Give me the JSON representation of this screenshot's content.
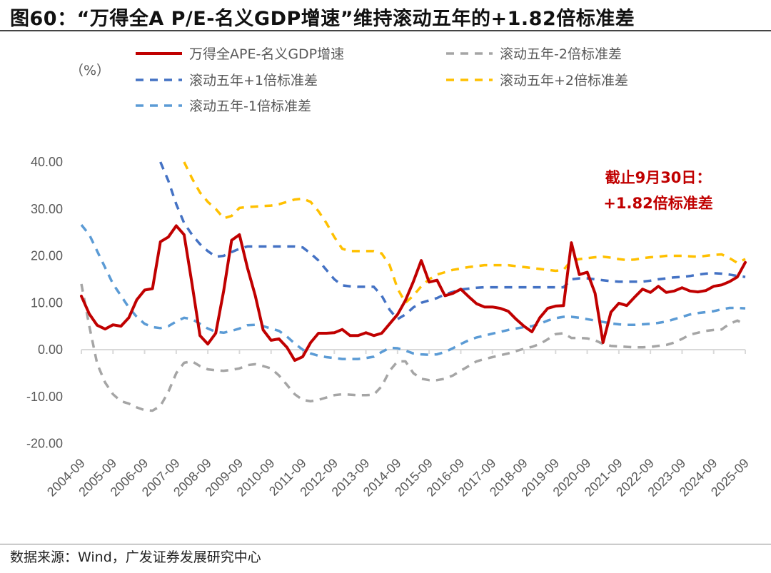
{
  "title": "图60：“万得全A P/E-名义GDP增速”维持滚动五年的+1.82倍标准差",
  "source": "数据来源：Wind，广发证券发展研究中心",
  "chart_data": {
    "type": "line",
    "title": "图60：“万得全A P/E-名义GDP增速”维持滚动五年的+1.82倍标准差",
    "ylabel": "（%）",
    "xlabel": "",
    "ylim": [
      -20,
      40
    ],
    "yticks": [
      "40.00",
      "30.00",
      "20.00",
      "10.00",
      "0.00",
      "-10.00",
      "-20.00"
    ],
    "xtick_labels": [
      "2004-09",
      "2005-09",
      "2006-09",
      "2007-09",
      "2008-09",
      "2009-09",
      "2010-09",
      "2011-09",
      "2012-09",
      "2013-09",
      "2014-09",
      "2015-09",
      "2016-09",
      "2017-09",
      "2018-09",
      "2019-09",
      "2020-09",
      "2021-09",
      "2022-09",
      "2023-09",
      "2024-09",
      "2025-09"
    ],
    "grid": false,
    "legend_position": "top",
    "annotation": [
      "截止9月30日：",
      "+1.82倍标准差"
    ],
    "annotation_color": "#c00000",
    "x": [
      "2004-09",
      "2004-12",
      "2005-03",
      "2005-06",
      "2005-09",
      "2005-12",
      "2006-03",
      "2006-06",
      "2006-09",
      "2006-12",
      "2007-03",
      "2007-06",
      "2007-09",
      "2007-12",
      "2008-03",
      "2008-06",
      "2008-09",
      "2008-12",
      "2009-03",
      "2009-06",
      "2009-09",
      "2009-12",
      "2010-03",
      "2010-06",
      "2010-09",
      "2010-12",
      "2011-03",
      "2011-06",
      "2011-09",
      "2011-12",
      "2012-03",
      "2012-06",
      "2012-09",
      "2012-12",
      "2013-03",
      "2013-06",
      "2013-09",
      "2013-12",
      "2014-03",
      "2014-06",
      "2014-09",
      "2014-12",
      "2015-03",
      "2015-06",
      "2015-09",
      "2015-12",
      "2016-03",
      "2016-06",
      "2016-09",
      "2016-12",
      "2017-03",
      "2017-06",
      "2017-09",
      "2017-12",
      "2018-03",
      "2018-06",
      "2018-09",
      "2018-12",
      "2019-03",
      "2019-06",
      "2019-09",
      "2019-12",
      "2020-03",
      "2020-06",
      "2020-09",
      "2020-12",
      "2021-03",
      "2021-06",
      "2021-09",
      "2021-12",
      "2022-03",
      "2022-06",
      "2022-09",
      "2022-12",
      "2023-03",
      "2023-06",
      "2023-09",
      "2023-12",
      "2024-03",
      "2024-06",
      "2024-09",
      "2024-12",
      "2025-03",
      "2025-06",
      "2025-09"
    ],
    "series": [
      {
        "name": "万得全APE-名义GDP增速",
        "color": "#c00000",
        "style": "solid",
        "values": [
          11.4,
          7.6,
          5.2,
          4.4,
          5.3,
          5.0,
          6.8,
          10.6,
          12.7,
          13.0,
          23.0,
          24.0,
          26.4,
          24.5,
          14,
          3,
          1.2,
          3.5,
          12.5,
          23.3,
          24.5,
          17.5,
          11.5,
          4.2,
          2.0,
          2.3,
          0.5,
          -2.3,
          -1.5,
          1.5,
          3.5,
          3.5,
          3.6,
          4.3,
          3.0,
          3.0,
          3.6,
          3.0,
          3.5,
          5.5,
          7.5,
          10.5,
          14.5,
          19,
          14.4,
          14.8,
          11.5,
          12,
          12.9,
          11.3,
          9.8,
          9.1,
          9.1,
          8.8,
          8.2,
          6.5,
          5.0,
          3.8,
          6.8,
          8.8,
          9.3,
          9.4,
          22.8,
          16,
          16.5,
          12,
          1.5,
          8,
          9.9,
          9.4,
          11.2,
          12.9,
          12.2,
          13.5,
          12.2,
          12.5,
          13.2,
          12.5,
          12.3,
          12.6,
          13.5,
          13.8,
          14.5,
          15.5,
          18.6
        ]
      },
      {
        "name": "滚动五年-2倍标准差",
        "color": "#a5a5a5",
        "style": "dashed",
        "values": [
          14,
          5,
          -3,
          -7,
          -9.5,
          -11,
          -11.5,
          -12.3,
          -12.9,
          -13,
          -12,
          -9,
          -5,
          -2.8,
          -2.5,
          -3.5,
          -4.2,
          -4.4,
          -4.5,
          -4.3,
          -4,
          -3.3,
          -3.1,
          -3.5,
          -4,
          -5.5,
          -7.5,
          -9.5,
          -10.7,
          -11,
          -10.7,
          -10.2,
          -9.7,
          -9.5,
          -9.6,
          -9.7,
          -9.7,
          -9.6,
          -7.8,
          -4.5,
          -2.5,
          -2.5,
          -5,
          -6.2,
          -6.5,
          -6.5,
          -6.2,
          -5.5,
          -4.5,
          -3.5,
          -2.5,
          -2,
          -1.6,
          -1.2,
          -0.8,
          -0.3,
          0.2,
          0.6,
          1.2,
          2.2,
          3.3,
          3.5,
          2.5,
          2.5,
          2.4,
          2,
          1.2,
          0.8,
          0.7,
          0.6,
          0.5,
          0.5,
          0.6,
          0.8,
          1,
          1.5,
          2.3,
          3.2,
          3.6,
          4,
          4.2,
          4.3,
          5.5,
          6.2,
          5.3
        ]
      },
      {
        "name": "滚动五年+1倍标准差",
        "color": "#4472c4",
        "style": "dashed",
        "values": [
          null,
          null,
          null,
          null,
          null,
          null,
          null,
          null,
          null,
          null,
          40,
          36,
          31,
          27,
          24.5,
          22.5,
          21,
          19.8,
          20,
          20.8,
          21.5,
          22,
          22,
          22,
          22,
          22,
          22,
          22,
          21.8,
          20.5,
          19,
          17,
          15,
          13.7,
          13.5,
          13.4,
          13.4,
          13.4,
          11.5,
          8.5,
          6.5,
          7.5,
          9,
          10,
          10.5,
          11,
          11.8,
          12.3,
          12.8,
          13,
          13.2,
          13.3,
          13.3,
          13.3,
          13.3,
          13.3,
          13.3,
          13.3,
          13.3,
          13.3,
          13.3,
          13.3,
          15,
          15.2,
          15.2,
          15,
          14.8,
          14.6,
          14.5,
          14.5,
          14.5,
          14.5,
          14.7,
          15,
          15.2,
          15.4,
          15.5,
          15.7,
          16,
          16.2,
          16.3,
          16.2,
          16,
          15.7,
          15.5
        ]
      },
      {
        "name": "滚动五年+2倍标准差",
        "color": "#ffc000",
        "style": "dashed",
        "values": [
          null,
          null,
          null,
          null,
          null,
          null,
          null,
          null,
          null,
          null,
          null,
          null,
          null,
          40,
          36.5,
          33.5,
          31.5,
          30,
          28,
          28.5,
          30.2,
          30.4,
          30.5,
          30.6,
          30.7,
          31,
          31.5,
          32,
          32.2,
          31.5,
          29.5,
          27,
          24,
          21.5,
          21,
          21,
          21,
          21,
          20.5,
          18,
          13,
          10,
          11.5,
          13.5,
          15,
          16,
          16.5,
          17,
          17.3,
          17.6,
          17.8,
          18,
          18,
          18,
          18,
          17.8,
          17.6,
          17.4,
          17.2,
          17,
          16.8,
          17,
          19,
          19.3,
          19.5,
          19.7,
          19.8,
          19.6,
          19.3,
          19.1,
          19.2,
          19.5,
          19.7,
          19.8,
          20,
          20,
          20,
          19.9,
          19.8,
          20,
          20.2,
          20.3,
          19.5,
          18.5,
          19.3
        ]
      },
      {
        "name": "滚动五年-1倍标准差",
        "color": "#5b9bd5",
        "style": "dashed",
        "values": [
          26.6,
          24.5,
          21,
          17.5,
          14,
          11.5,
          9,
          7,
          5.5,
          4.8,
          4.6,
          5,
          6,
          6.8,
          6.5,
          5.5,
          4.5,
          3.8,
          3.6,
          4,
          4.5,
          5.2,
          5.3,
          5,
          4.5,
          4,
          2.8,
          1.3,
          0,
          -0.8,
          -1.3,
          -1.6,
          -1.8,
          -2,
          -2,
          -2,
          -1.8,
          -1.5,
          -0.5,
          0.4,
          0.3,
          -0.2,
          -0.8,
          -1,
          -1.1,
          -1,
          -0.5,
          0.3,
          1.2,
          2,
          2.6,
          3,
          3.4,
          3.8,
          4.2,
          4.5,
          4.8,
          5,
          5.5,
          6.2,
          6.7,
          7,
          7,
          6.8,
          6.5,
          6.2,
          5.9,
          5.6,
          5.4,
          5.3,
          5.3,
          5.4,
          5.5,
          5.7,
          6,
          6.5,
          7,
          7.5,
          7.8,
          8,
          8.2,
          8.6,
          8.9,
          8.9,
          8.8
        ]
      }
    ]
  }
}
